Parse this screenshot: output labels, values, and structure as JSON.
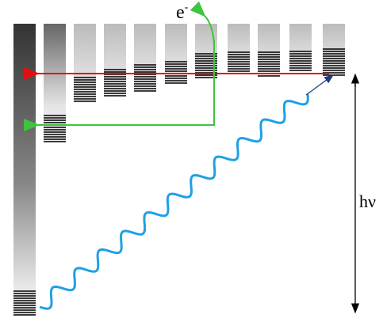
{
  "labels": {
    "electron": "e",
    "electron_charge": "-",
    "photon_energy": "hν"
  }
}
